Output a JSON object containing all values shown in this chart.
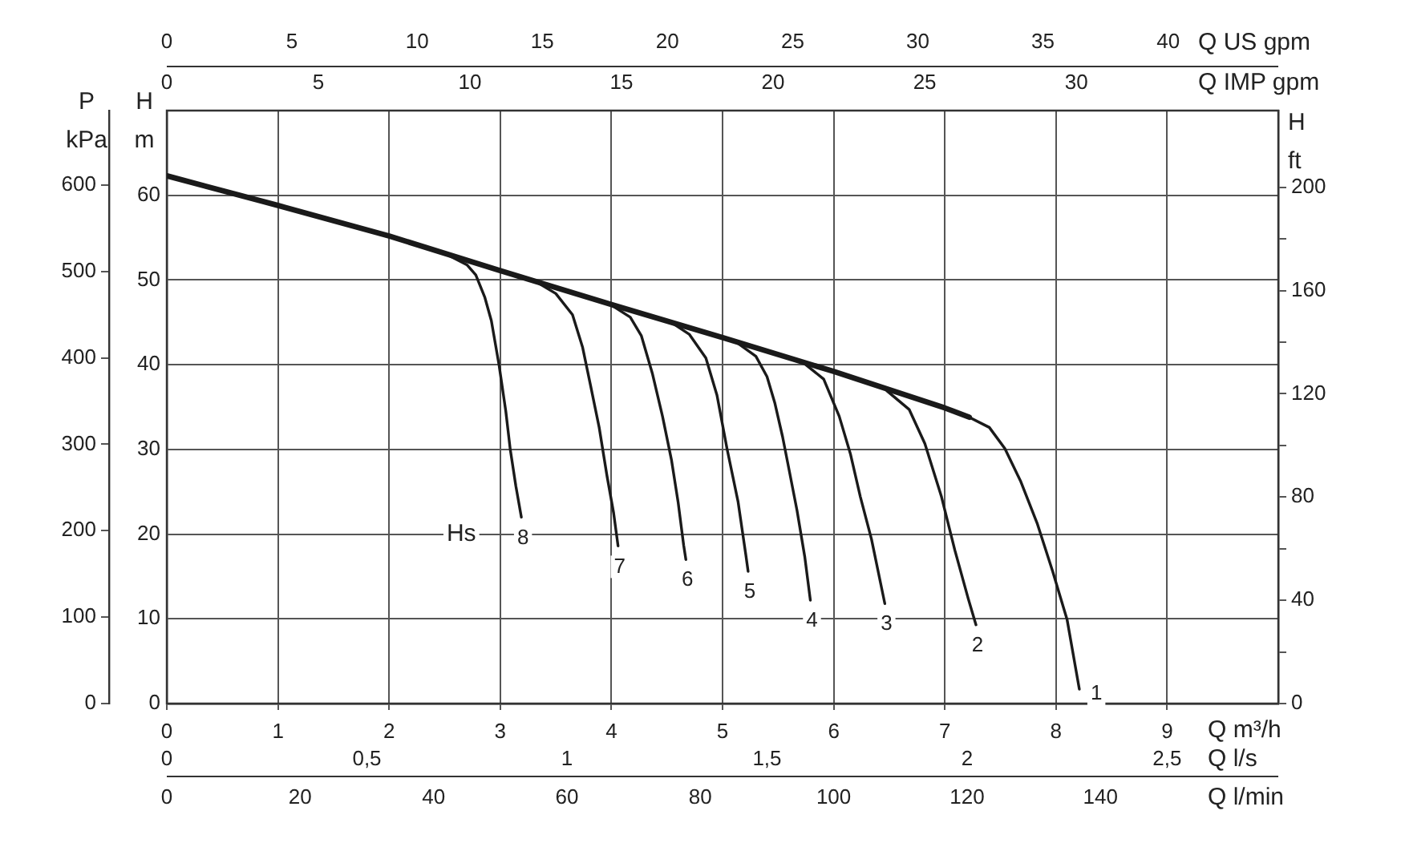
{
  "chart_data": {
    "type": "line",
    "xlabel": "Q m³/h",
    "x2label": "Q US gpm",
    "ylabel": "H m",
    "y2label": "H ft",
    "y3label": "P kPa",
    "xlim": [
      0,
      10
    ],
    "xticks": [
      0,
      1,
      2,
      3,
      4,
      5,
      6,
      7,
      8,
      9
    ],
    "x2lim": [
      0,
      44.4
    ],
    "x2ticks": [
      0,
      5,
      10,
      15,
      20,
      25,
      30,
      35,
      40
    ],
    "ylim": [
      0,
      70
    ],
    "yticks": [
      0,
      10,
      20,
      30,
      40,
      50,
      60
    ],
    "y2lim": [
      0,
      229.7
    ],
    "y2ticks": [
      0,
      {
        "value": 20,
        "label": null
      },
      40,
      {
        "value": 60,
        "label": null
      },
      80,
      {
        "value": 100,
        "label": null
      },
      120,
      {
        "value": 140,
        "label": null
      },
      160,
      {
        "value": 180,
        "label": null
      },
      200
    ],
    "y3lim": [
      0,
      686
    ],
    "y3ticks": [
      0,
      100,
      200,
      300,
      400,
      500,
      600
    ],
    "grid": true,
    "legend": false,
    "marker": "none",
    "line_style": "solid",
    "annotations": [
      {
        "text": "Hs",
        "x": 2.65,
        "y": 20
      },
      "0",
      "5",
      "10",
      "15",
      "20",
      "25",
      "30",
      "Q IMP gpm",
      "0",
      "0,5",
      "1",
      "1,5",
      "2",
      "2,5",
      "Q l/s",
      "0",
      "20",
      "40",
      "60",
      "80",
      "100",
      "120",
      "140",
      "Q l/min"
    ],
    "series": [
      {
        "color": "#1a1a1a",
        "x": [
          0,
          1,
          2,
          3,
          4,
          5,
          6,
          7,
          7.22
        ],
        "values": [
          62.3,
          58.8,
          55.2,
          51.1,
          47.1,
          43.2,
          39.2,
          34.9,
          33.8
        ]
      },
      {
        "name": "1",
        "color": "#1a1a1a",
        "x": [
          7.22,
          7.4,
          7.54,
          7.68,
          7.83,
          7.97,
          8.1,
          8.21
        ],
        "values": [
          33.8,
          32.6,
          30.1,
          26.3,
          21.3,
          15.6,
          9.9,
          1.7
        ]
      },
      {
        "name": "2",
        "color": "#1a1a1a",
        "x": [
          6.48,
          6.68,
          6.82,
          6.97,
          7.09,
          7.21,
          7.28
        ],
        "values": [
          36.9,
          34.7,
          30.7,
          24.4,
          18.1,
          12.4,
          9.3
        ]
      },
      {
        "name": "3",
        "color": "#1a1a1a",
        "x": [
          5.72,
          5.91,
          6.05,
          6.15,
          6.24,
          6.34,
          6.46
        ],
        "values": [
          40.3,
          38.3,
          33.9,
          29.5,
          24.4,
          19.4,
          11.8
        ]
      },
      {
        "name": "4",
        "color": "#1a1a1a",
        "x": [
          5.12,
          5.3,
          5.4,
          5.47,
          5.54,
          5.6,
          5.67,
          5.74,
          5.79
        ],
        "values": [
          42.7,
          41.0,
          38.6,
          35.5,
          31.5,
          27.5,
          22.8,
          17.3,
          12.2
        ]
      },
      {
        "name": "5",
        "color": "#1a1a1a",
        "x": [
          4.55,
          4.7,
          4.85,
          4.95,
          5.04,
          5.14,
          5.21,
          5.23
        ],
        "values": [
          44.9,
          43.6,
          40.8,
          36.4,
          30.1,
          23.8,
          17.5,
          15.6
        ]
      },
      {
        "name": "6",
        "color": "#1a1a1a",
        "x": [
          3.98,
          4.17,
          4.27,
          4.37,
          4.46,
          4.54,
          4.6,
          4.65,
          4.67
        ],
        "values": [
          47.2,
          45.6,
          43.4,
          38.9,
          33.9,
          28.8,
          23.8,
          18.7,
          17.0
        ]
      },
      {
        "name": "7",
        "color": "#1a1a1a",
        "x": [
          3.31,
          3.5,
          3.65,
          3.74,
          3.81,
          3.89,
          3.96,
          4.02,
          4.06
        ],
        "values": [
          49.9,
          48.4,
          45.9,
          42.1,
          37.7,
          32.6,
          26.9,
          22.5,
          18.6
        ]
      },
      {
        "name": "8",
        "color": "#1a1a1a",
        "x": [
          2.55,
          2.7,
          2.78,
          2.86,
          2.92,
          2.99,
          3.05,
          3.09,
          3.14,
          3.19
        ],
        "values": [
          52.8,
          51.8,
          50.6,
          48.0,
          45.2,
          39.9,
          34.5,
          30.0,
          25.7,
          22.0
        ]
      }
    ]
  }
}
